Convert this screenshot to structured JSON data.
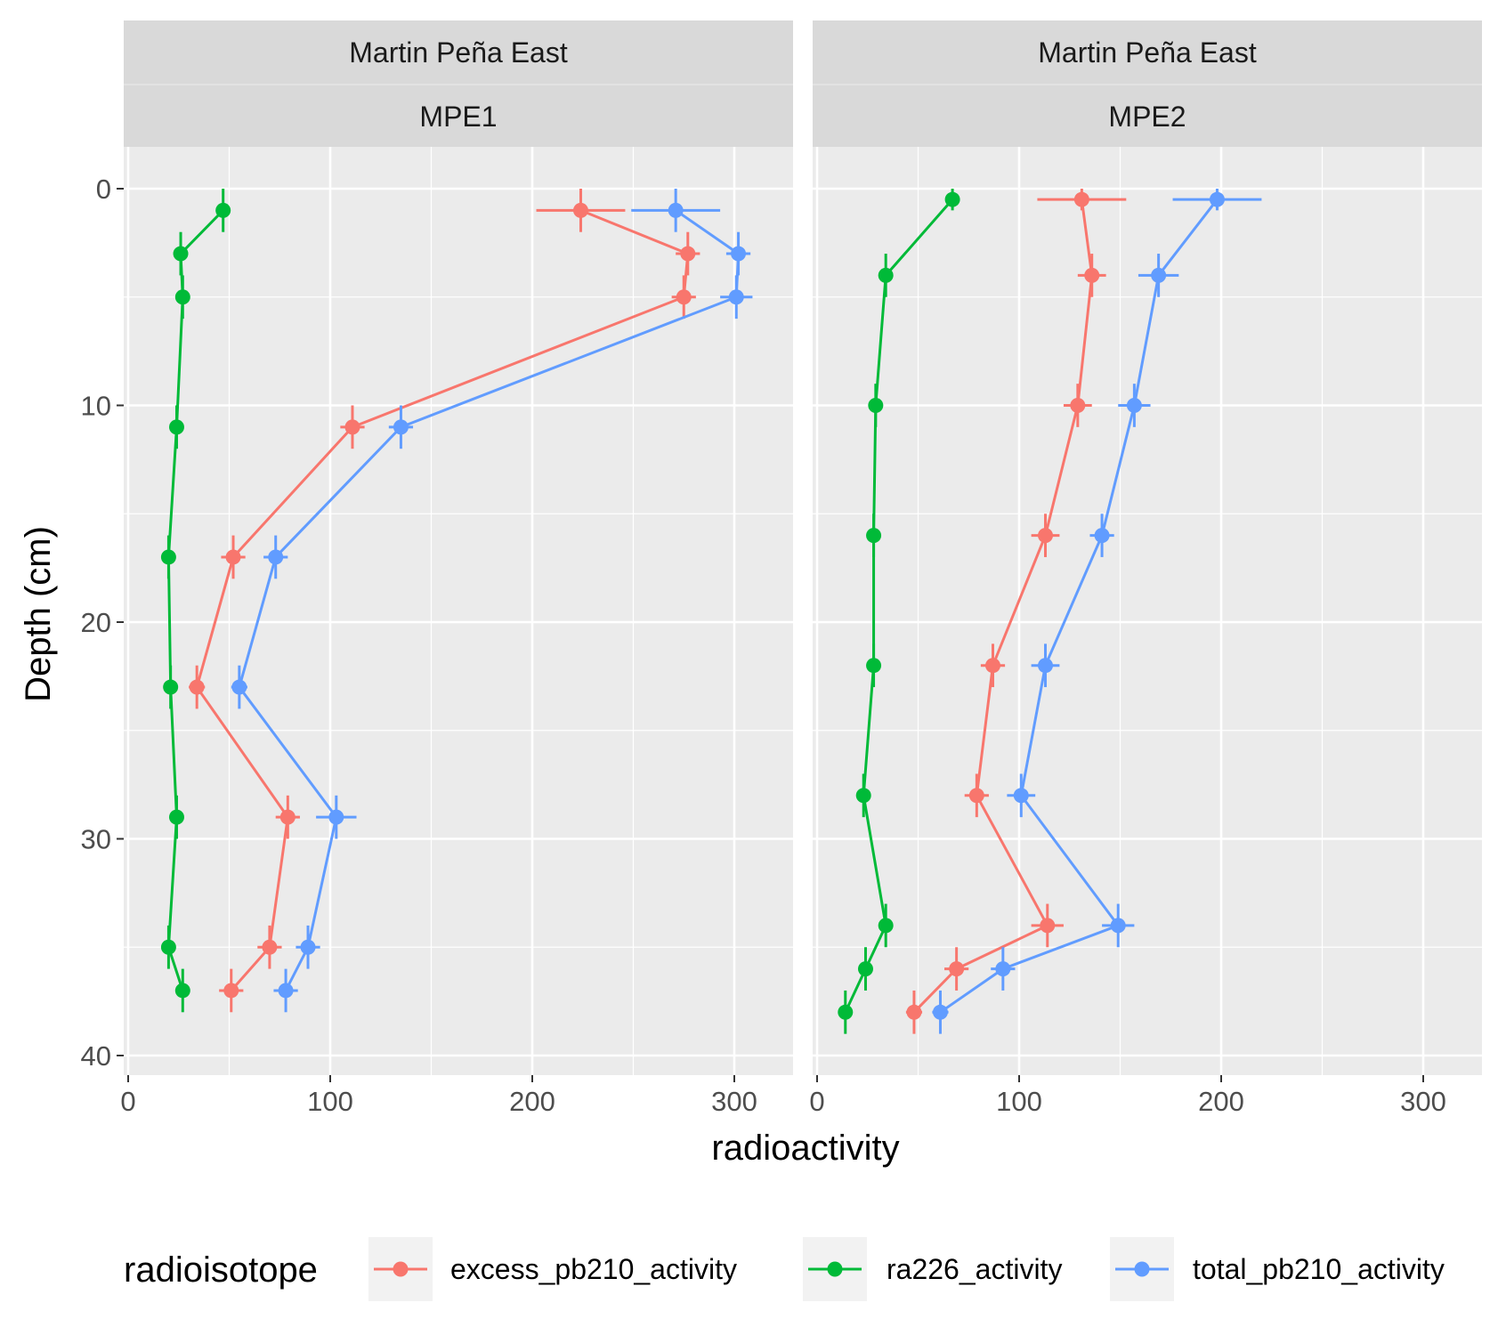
{
  "chart_data": {
    "type": "line",
    "xlabel": "radioactivity",
    "ylabel": "Depth (cm)",
    "xlim": [
      0,
      325
    ],
    "ylim": [
      40,
      -2
    ],
    "x_ticks": [
      "0",
      "100",
      "200",
      "300"
    ],
    "y_ticks": [
      "0",
      "10",
      "20",
      "30",
      "40"
    ],
    "legend": {
      "title": "radioisotope",
      "position": "bottom"
    },
    "grid": true,
    "series_meta": [
      {
        "name": "excess_pb210_activity",
        "color": "#F8766D"
      },
      {
        "name": "ra226_activity",
        "color": "#00BA38"
      },
      {
        "name": "total_pb210_activity",
        "color": "#619CFF"
      }
    ],
    "panels": [
      {
        "strip_top": "Martin Peña East",
        "strip_bottom": "MPE1",
        "series": [
          {
            "name": "excess_pb210_activity",
            "points": [
              {
                "x": 224,
                "y": 1,
                "xerr": 22,
                "yerr": 1
              },
              {
                "x": 277,
                "y": 3,
                "xerr": 6,
                "yerr": 1
              },
              {
                "x": 275,
                "y": 5,
                "xerr": 6,
                "yerr": 1
              },
              {
                "x": 111,
                "y": 11,
                "xerr": 6,
                "yerr": 1
              },
              {
                "x": 52,
                "y": 17,
                "xerr": 6,
                "yerr": 1
              },
              {
                "x": 34,
                "y": 23,
                "xerr": 4,
                "yerr": 1
              },
              {
                "x": 79,
                "y": 29,
                "xerr": 6,
                "yerr": 1
              },
              {
                "x": 70,
                "y": 35,
                "xerr": 6,
                "yerr": 1
              },
              {
                "x": 51,
                "y": 37,
                "xerr": 6,
                "yerr": 1
              }
            ]
          },
          {
            "name": "ra226_activity",
            "points": [
              {
                "x": 47,
                "y": 1,
                "xerr": 1,
                "yerr": 1
              },
              {
                "x": 26,
                "y": 3,
                "xerr": 1,
                "yerr": 1
              },
              {
                "x": 27,
                "y": 5,
                "xerr": 1,
                "yerr": 1
              },
              {
                "x": 24,
                "y": 11,
                "xerr": 1,
                "yerr": 1
              },
              {
                "x": 20,
                "y": 17,
                "xerr": 1,
                "yerr": 1
              },
              {
                "x": 21,
                "y": 23,
                "xerr": 1,
                "yerr": 1
              },
              {
                "x": 24,
                "y": 29,
                "xerr": 1,
                "yerr": 1
              },
              {
                "x": 20,
                "y": 35,
                "xerr": 1,
                "yerr": 1
              },
              {
                "x": 27,
                "y": 37,
                "xerr": 1,
                "yerr": 1
              }
            ]
          },
          {
            "name": "total_pb210_activity",
            "points": [
              {
                "x": 271,
                "y": 1,
                "xerr": 22,
                "yerr": 1
              },
              {
                "x": 302,
                "y": 3,
                "xerr": 6,
                "yerr": 1
              },
              {
                "x": 301,
                "y": 5,
                "xerr": 8,
                "yerr": 1
              },
              {
                "x": 135,
                "y": 11,
                "xerr": 6,
                "yerr": 1
              },
              {
                "x": 73,
                "y": 17,
                "xerr": 6,
                "yerr": 1
              },
              {
                "x": 55,
                "y": 23,
                "xerr": 4,
                "yerr": 1
              },
              {
                "x": 103,
                "y": 29,
                "xerr": 10,
                "yerr": 1
              },
              {
                "x": 89,
                "y": 35,
                "xerr": 6,
                "yerr": 1
              },
              {
                "x": 78,
                "y": 37,
                "xerr": 6,
                "yerr": 1
              }
            ]
          }
        ]
      },
      {
        "strip_top": "Martin Peña East",
        "strip_bottom": "MPE2",
        "series": [
          {
            "name": "excess_pb210_activity",
            "points": [
              {
                "x": 131,
                "y": 0.5,
                "xerr": 22,
                "yerr": 0.5
              },
              {
                "x": 136,
                "y": 4,
                "xerr": 7,
                "yerr": 1
              },
              {
                "x": 129,
                "y": 10,
                "xerr": 7,
                "yerr": 1
              },
              {
                "x": 113,
                "y": 16,
                "xerr": 7,
                "yerr": 1
              },
              {
                "x": 87,
                "y": 22,
                "xerr": 6,
                "yerr": 1
              },
              {
                "x": 79,
                "y": 28,
                "xerr": 6,
                "yerr": 1
              },
              {
                "x": 114,
                "y": 34,
                "xerr": 8,
                "yerr": 1
              },
              {
                "x": 69,
                "y": 36,
                "xerr": 6,
                "yerr": 1
              },
              {
                "x": 48,
                "y": 38,
                "xerr": 4,
                "yerr": 1
              }
            ]
          },
          {
            "name": "ra226_activity",
            "points": [
              {
                "x": 67,
                "y": 0.5,
                "xerr": 2,
                "yerr": 0.5
              },
              {
                "x": 34,
                "y": 4,
                "xerr": 1,
                "yerr": 1
              },
              {
                "x": 29,
                "y": 10,
                "xerr": 1,
                "yerr": 1
              },
              {
                "x": 28,
                "y": 16,
                "xerr": 1,
                "yerr": 1
              },
              {
                "x": 28,
                "y": 22,
                "xerr": 1,
                "yerr": 1
              },
              {
                "x": 23,
                "y": 28,
                "xerr": 1,
                "yerr": 1
              },
              {
                "x": 34,
                "y": 34,
                "xerr": 1,
                "yerr": 1
              },
              {
                "x": 24,
                "y": 36,
                "xerr": 1,
                "yerr": 1
              },
              {
                "x": 14,
                "y": 38,
                "xerr": 1,
                "yerr": 1
              }
            ]
          },
          {
            "name": "total_pb210_activity",
            "points": [
              {
                "x": 198,
                "y": 0.5,
                "xerr": 22,
                "yerr": 0.5
              },
              {
                "x": 169,
                "y": 4,
                "xerr": 10,
                "yerr": 1
              },
              {
                "x": 157,
                "y": 10,
                "xerr": 8,
                "yerr": 1
              },
              {
                "x": 141,
                "y": 16,
                "xerr": 6,
                "yerr": 1
              },
              {
                "x": 113,
                "y": 22,
                "xerr": 7,
                "yerr": 1
              },
              {
                "x": 101,
                "y": 28,
                "xerr": 7,
                "yerr": 1
              },
              {
                "x": 149,
                "y": 34,
                "xerr": 8,
                "yerr": 1
              },
              {
                "x": 92,
                "y": 36,
                "xerr": 6,
                "yerr": 1
              },
              {
                "x": 61,
                "y": 38,
                "xerr": 4,
                "yerr": 1
              }
            ]
          }
        ]
      }
    ]
  }
}
